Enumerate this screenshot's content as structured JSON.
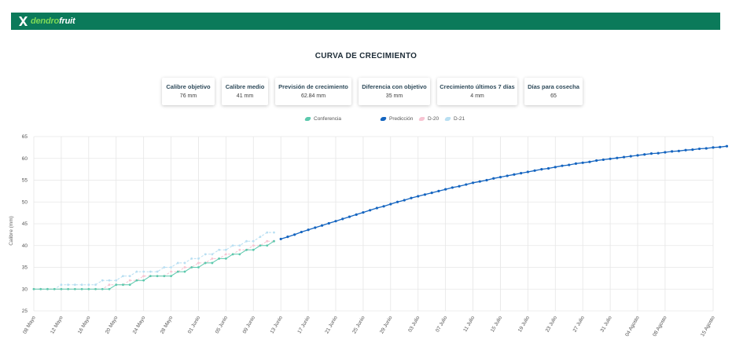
{
  "header": {
    "brand_part1": "dendro",
    "brand_part2": "fruit"
  },
  "page_title": "CURVA DE CRECIMIENTO",
  "cards": [
    {
      "label": "Calibre objetivo",
      "value": "76 mm"
    },
    {
      "label": "Calibre medio",
      "value": "41 mm"
    },
    {
      "label": "Previsión de crecimiento",
      "value": "62.84 mm"
    },
    {
      "label": "Diferencia con objetivo",
      "value": "35 mm"
    },
    {
      "label": "Crecimiento últimos 7 días",
      "value": "4 mm"
    },
    {
      "label": "Días para cosecha",
      "value": "65"
    }
  ],
  "colors": {
    "brand": "#0b7a5a",
    "conferencia": "#5cc9ad",
    "prediccion": "#1565c0",
    "d20": "#f7c4d2",
    "d21": "#b9dff2",
    "grid": "#e6e6e6"
  },
  "chart_data": {
    "type": "line",
    "ylabel": "Calibre (mm)",
    "ylim": [
      25,
      65
    ],
    "yticks": [
      25,
      30,
      35,
      40,
      45,
      50,
      55,
      60,
      65
    ],
    "x_start": "08 Mayo",
    "x_end": "15 Agosto",
    "xtick_labels": [
      "08 Mayo",
      "12 Mayo",
      "16 Mayo",
      "20 Mayo",
      "24 Mayo",
      "28 Mayo",
      "01 Junio",
      "05 Junio",
      "09 Junio",
      "13 Junio",
      "17 Junio",
      "21 Junio",
      "25 Junio",
      "29 Junio",
      "03 Julio",
      "07 Julio",
      "11 Julio",
      "15 Julio",
      "19 Julio",
      "23 Julio",
      "27 Julio",
      "31 Julio",
      "04 Agosto",
      "08 Agosto",
      "15 Agosto"
    ],
    "legend": [
      "Conferencia",
      "Predicción",
      "D-20",
      "D-21"
    ],
    "series": [
      {
        "name": "Conferencia",
        "values": [
          30,
          30,
          30,
          30,
          30,
          30,
          30,
          30,
          30,
          30,
          30,
          30,
          31,
          31,
          31,
          32,
          32,
          33,
          33,
          33,
          33,
          34,
          34,
          35,
          35,
          36,
          36,
          37,
          37,
          38,
          38,
          39,
          39,
          40,
          40,
          41
        ]
      },
      {
        "name": "D-20",
        "values": [
          30,
          30,
          30,
          30,
          30,
          30,
          30,
          30,
          30,
          30,
          30,
          31,
          31,
          31,
          32,
          32,
          33,
          33,
          33,
          33,
          34,
          34,
          35,
          35,
          36,
          36,
          37,
          37,
          38,
          38,
          39,
          39,
          40,
          40,
          41,
          41
        ]
      },
      {
        "name": "D-21",
        "values": [
          30,
          30,
          30,
          30,
          31,
          31,
          31,
          31,
          31,
          31,
          32,
          32,
          32,
          33,
          33,
          34,
          34,
          34,
          34,
          35,
          35,
          36,
          36,
          37,
          37,
          38,
          38,
          39,
          39,
          40,
          40,
          41,
          41,
          42,
          43,
          43
        ]
      },
      {
        "name": "Predicción",
        "values": [
          41.5,
          42,
          42.5,
          43.1,
          43.6,
          44.1,
          44.6,
          45.1,
          45.6,
          46.1,
          46.6,
          47.1,
          47.6,
          48.1,
          48.6,
          49,
          49.5,
          50,
          50.4,
          50.9,
          51.3,
          51.7,
          52.1,
          52.5,
          52.9,
          53.3,
          53.6,
          54,
          54.4,
          54.7,
          55,
          55.4,
          55.7,
          56,
          56.3,
          56.6,
          56.9,
          57.2,
          57.5,
          57.7,
          58,
          58.3,
          58.5,
          58.8,
          59,
          59.2,
          59.5,
          59.7,
          59.9,
          60.1,
          60.3,
          60.5,
          60.7,
          60.9,
          61.1,
          61.2,
          61.4,
          61.6,
          61.7,
          61.9,
          62,
          62.2,
          62.3,
          62.5,
          62.6,
          62.8
        ]
      }
    ]
  }
}
